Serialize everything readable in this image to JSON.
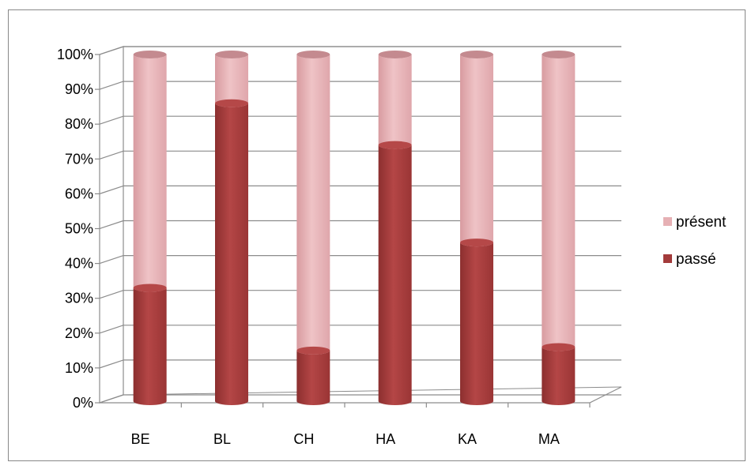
{
  "chart_data": {
    "type": "bar",
    "stacked": "percent",
    "style": "3d-cylinder",
    "categories": [
      "BE",
      "BL",
      "CH",
      "HA",
      "KA",
      "MA"
    ],
    "series": [
      {
        "name": "passé",
        "values": [
          33,
          86,
          15,
          74,
          46,
          16
        ],
        "color": "#a33b3b"
      },
      {
        "name": "présent",
        "values": [
          67,
          14,
          85,
          26,
          54,
          84
        ],
        "color": "#e6b0b4"
      }
    ],
    "y_ticks": [
      "0%",
      "10%",
      "20%",
      "30%",
      "40%",
      "50%",
      "60%",
      "70%",
      "80%",
      "90%",
      "100%"
    ],
    "ylim": [
      0,
      100
    ],
    "grid": true,
    "legend": {
      "placement": "right",
      "entries": [
        {
          "label": "présent",
          "color": "#e6b0b4"
        },
        {
          "label": "passé",
          "color": "#a33b3b"
        }
      ]
    }
  }
}
